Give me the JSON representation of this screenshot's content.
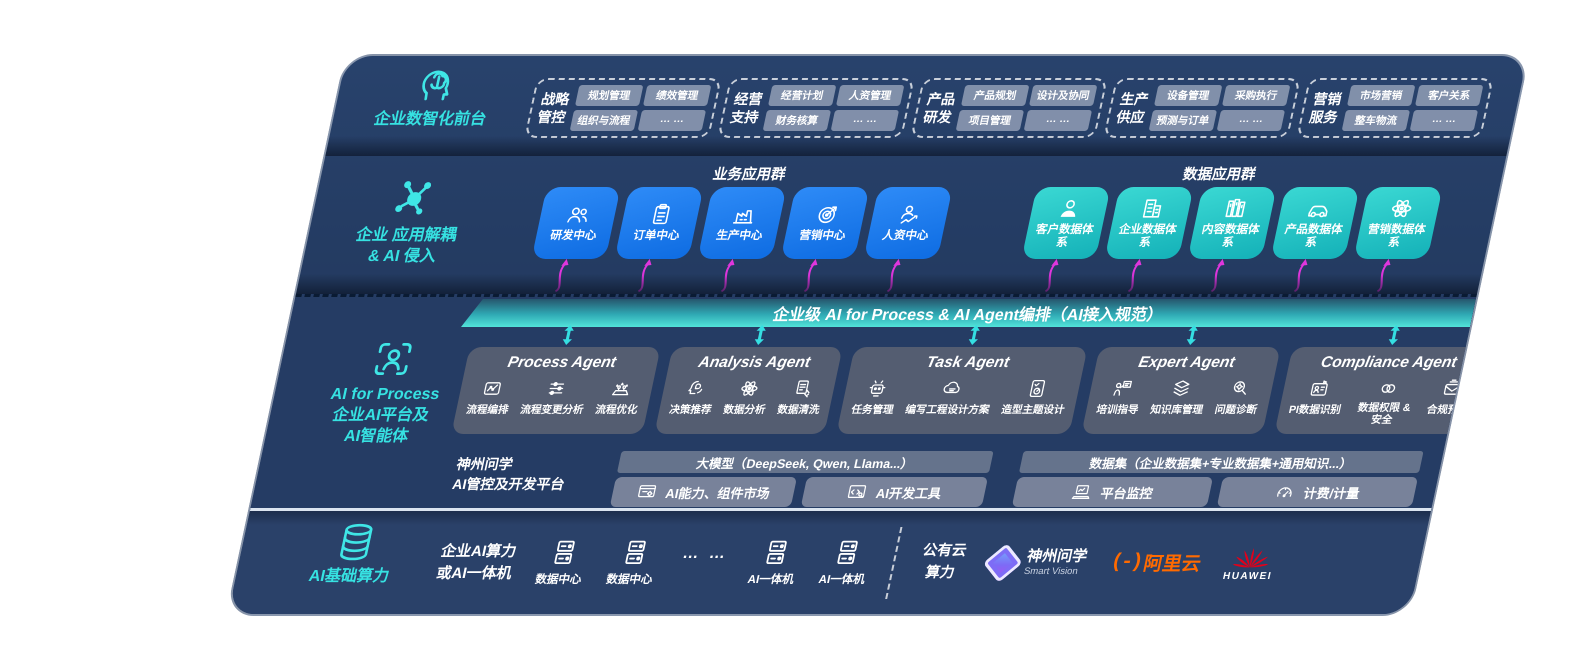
{
  "layers": {
    "front": {
      "label": "企业数智化前台",
      "icon": "brain-head"
    },
    "decouple": {
      "label_line1": "企业 应用解耦",
      "label_line2": "& AI 侵入",
      "icon": "molecule"
    },
    "aiprocess": {
      "label_line1": "AI for Process",
      "label_line2": "企业AI平台及",
      "label_line3": "AI智能体",
      "icon": "person-scan"
    },
    "compute": {
      "label": "AI基础算力",
      "icon": "database"
    }
  },
  "top_groups": [
    {
      "title_line1": "战略",
      "title_line2": "管控",
      "items": [
        "规划管理",
        "绩效管理",
        "组织与流程",
        "… …"
      ]
    },
    {
      "title_line1": "经营",
      "title_line2": "支持",
      "items": [
        "经营计划",
        "人资管理",
        "财务核算",
        "… …"
      ]
    },
    {
      "title_line1": "产品",
      "title_line2": "研发",
      "items": [
        "产品规划",
        "设计及协同",
        "项目管理",
        "… …"
      ]
    },
    {
      "title_line1": "生产",
      "title_line2": "供应",
      "items": [
        "设备管理",
        "采购执行",
        "预测与订单",
        "… …"
      ]
    },
    {
      "title_line1": "营销",
      "title_line2": "服务",
      "items": [
        "市场营销",
        "客户关系",
        "整车物流",
        "… …"
      ]
    }
  ],
  "app_groups": {
    "business": {
      "title": "业务应用群",
      "boxes": [
        {
          "label": "研发中心",
          "icon": "team"
        },
        {
          "label": "订单中心",
          "icon": "clipboard"
        },
        {
          "label": "生产中心",
          "icon": "factory"
        },
        {
          "label": "营销中心",
          "icon": "target"
        },
        {
          "label": "人资中心",
          "icon": "people-chart"
        }
      ]
    },
    "data": {
      "title": "数据应用群",
      "boxes": [
        {
          "label": "客户数据体系",
          "icon": "person"
        },
        {
          "label": "企业数据体系",
          "icon": "building"
        },
        {
          "label": "内容数据体系",
          "icon": "books"
        },
        {
          "label": "产品数据体系",
          "icon": "car"
        },
        {
          "label": "营销数据体系",
          "icon": "atom"
        }
      ]
    }
  },
  "ai_bus": {
    "label": "企业级 AI for Process & AI Agent编排（AI接入规范）"
  },
  "agents": [
    {
      "title": "Process Agent",
      "items": [
        {
          "label": "流程编排",
          "icon": "flow-box"
        },
        {
          "label": "流程变更分析",
          "icon": "sliders"
        },
        {
          "label": "流程优化",
          "icon": "stage"
        }
      ]
    },
    {
      "title": "Analysis Agent",
      "items": [
        {
          "label": "决策推荐",
          "icon": "head-idea"
        },
        {
          "label": "数据分析",
          "icon": "atom"
        },
        {
          "label": "数据清洗",
          "icon": "doc-clean"
        }
      ]
    },
    {
      "title": "Task Agent",
      "items": [
        {
          "label": "任务管理",
          "icon": "robot"
        },
        {
          "label": "编写工程设计方案",
          "icon": "cloud-gear"
        },
        {
          "label": "造型主题设计",
          "icon": "pad-gauge"
        }
      ]
    },
    {
      "title": "Expert Agent",
      "items": [
        {
          "label": "培训指导",
          "icon": "trainer"
        },
        {
          "label": "知识库管理",
          "icon": "layers"
        },
        {
          "label": "问题诊断",
          "icon": "diagnose"
        }
      ]
    },
    {
      "title": "Compliance Agent",
      "items": [
        {
          "label": "PI数据识别",
          "icon": "id-card"
        },
        {
          "label": "数据权限 & 安全",
          "icon": "rings"
        },
        {
          "label": "合规预警",
          "icon": "mail-alert"
        }
      ]
    }
  ],
  "platform": {
    "label_line1": "神州问学",
    "label_line2": "AI管控及开发平台",
    "model_bar": "大模型（DeepSeek, Qwen, Llama...）",
    "model_tools": [
      {
        "label": "AI能力、组件市场",
        "icon": "window-gear"
      },
      {
        "label": "AI开发工具",
        "icon": "dev-tools"
      }
    ],
    "data_bar": "数据集（企业数据集+专业数据集+通用知识...）",
    "data_tools": [
      {
        "label": "平台监控",
        "icon": "laptop"
      },
      {
        "label": "计费/计量",
        "icon": "gauge"
      }
    ]
  },
  "infra": {
    "compute_text_line1": "企业AI算力",
    "compute_text_line2": "或AI一体机",
    "nodes": [
      {
        "label": "数据中心",
        "icon": "server"
      },
      {
        "label": "数据中心",
        "icon": "server"
      },
      {
        "label": "… …"
      },
      {
        "label": "AI一体机",
        "icon": "server"
      },
      {
        "label": "AI一体机",
        "icon": "server"
      }
    ],
    "public_cloud_line1": "公有云",
    "public_cloud_line2": "算力",
    "vendors": [
      {
        "name": "神州问学",
        "sub": "Smart Vision"
      },
      {
        "name": "阿里云",
        "mark": "(-)"
      },
      {
        "name": "HUAWEI"
      }
    ]
  },
  "colors": {
    "panel_bg": "#24395f",
    "accent_teal": "#36e2e2",
    "app_blue": "#1678f0",
    "app_teal": "#23c3c6",
    "bus_gradient_end": "#52e3da",
    "arrow_magenta": "#e036dd",
    "aliyun_orange": "#ff6a00",
    "huawei_red": "#e2001a"
  }
}
